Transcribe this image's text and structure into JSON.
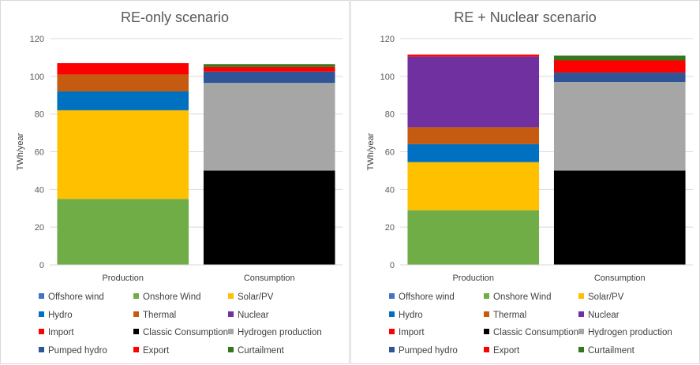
{
  "colors": {
    "Offshore wind": "#4472c4",
    "Onshore Wind": "#70ad47",
    "Solar/PV": "#ffc000",
    "Hydro": "#0070c0",
    "Thermal": "#c55a11",
    "Nuclear": "#7030a0",
    "Import": "#ff0000",
    "Classic Consumption": "#000000",
    "Hydrogen production": "#a6a6a6",
    "Pumped hydro": "#2f5597",
    "Export": "#ff0000",
    "Curtailment": "#38761d"
  },
  "chart_data": [
    {
      "type": "bar",
      "stacked": true,
      "title": "RE-only scenario",
      "ylabel": "TWh/year",
      "xlabel": "",
      "ylim": [
        0,
        120
      ],
      "yticks": [
        "0",
        "20",
        "40",
        "60",
        "80",
        "100",
        "120"
      ],
      "grid": true,
      "categories": [
        "Production",
        "Consumption"
      ],
      "series": [
        {
          "name": "Offshore wind",
          "values": [
            0,
            0
          ]
        },
        {
          "name": "Onshore Wind",
          "values": [
            35,
            0
          ]
        },
        {
          "name": "Solar/PV",
          "values": [
            47,
            0
          ]
        },
        {
          "name": "Hydro",
          "values": [
            10,
            0
          ]
        },
        {
          "name": "Thermal",
          "values": [
            9,
            0
          ]
        },
        {
          "name": "Nuclear",
          "values": [
            0,
            0
          ]
        },
        {
          "name": "Import",
          "values": [
            6,
            0
          ]
        },
        {
          "name": "Classic Consumption",
          "values": [
            0,
            50
          ]
        },
        {
          "name": "Hydrogen production",
          "values": [
            0,
            46.5
          ]
        },
        {
          "name": "Pumped hydro",
          "values": [
            0,
            6
          ]
        },
        {
          "name": "Export",
          "values": [
            0,
            2.5
          ]
        },
        {
          "name": "Curtailment",
          "values": [
            0,
            1.5
          ]
        }
      ],
      "legend": {
        "position": "bottom",
        "columns": [
          [
            "Offshore wind",
            "Hydro",
            "Import",
            "Pumped hydro"
          ],
          [
            "Onshore Wind",
            "Thermal",
            "Classic Consumption",
            "Export"
          ],
          [
            "Solar/PV",
            "Nuclear",
            "Hydrogen production",
            "Curtailment"
          ]
        ]
      }
    },
    {
      "type": "bar",
      "stacked": true,
      "title": "RE + Nuclear scenario",
      "ylabel": "TWh/year",
      "xlabel": "",
      "ylim": [
        0,
        120
      ],
      "yticks": [
        "0",
        "20",
        "40",
        "60",
        "80",
        "100",
        "120"
      ],
      "grid": true,
      "categories": [
        "Production",
        "Consumption"
      ],
      "series": [
        {
          "name": "Offshore wind",
          "values": [
            0,
            0
          ]
        },
        {
          "name": "Onshore Wind",
          "values": [
            29,
            0
          ]
        },
        {
          "name": "Solar/PV",
          "values": [
            25.5,
            0
          ]
        },
        {
          "name": "Hydro",
          "values": [
            9.5,
            0
          ]
        },
        {
          "name": "Thermal",
          "values": [
            9,
            0
          ]
        },
        {
          "name": "Nuclear",
          "values": [
            37.5,
            0
          ]
        },
        {
          "name": "Import",
          "values": [
            1,
            0
          ]
        },
        {
          "name": "Classic Consumption",
          "values": [
            0,
            50
          ]
        },
        {
          "name": "Hydrogen production",
          "values": [
            0,
            47
          ]
        },
        {
          "name": "Pumped hydro",
          "values": [
            0,
            5
          ]
        },
        {
          "name": "Export",
          "values": [
            0,
            6.5
          ]
        },
        {
          "name": "Curtailment",
          "values": [
            0,
            2.5
          ]
        }
      ],
      "legend": {
        "position": "bottom",
        "columns": [
          [
            "Offshore wind",
            "Hydro",
            "Import",
            "Pumped hydro"
          ],
          [
            "Onshore Wind",
            "Thermal",
            "Classic Consumption",
            "Export"
          ],
          [
            "Solar/PV",
            "Nuclear",
            "Hydrogen production",
            "Curtailment"
          ]
        ]
      }
    }
  ]
}
